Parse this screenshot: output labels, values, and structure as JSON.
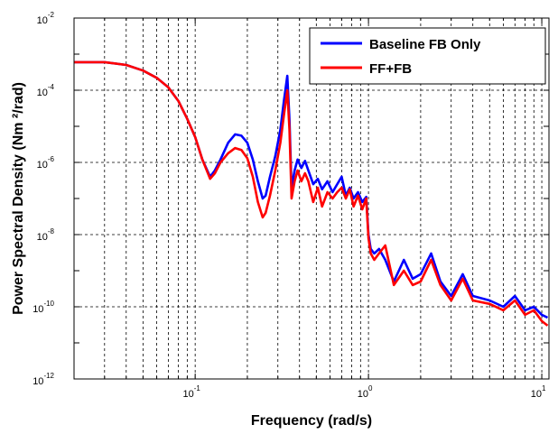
{
  "chart_data": {
    "type": "line",
    "xlabel": "Frequency (rad/s)",
    "ylabel": "Power Spectral Density (Nm ²/rad)",
    "xscale": "log",
    "yscale": "log",
    "xlim": [
      0.02,
      11
    ],
    "ylim": [
      1e-12,
      0.01
    ],
    "grid": true,
    "legend_position": "top-right",
    "x_ticks": [
      {
        "value": 0.1,
        "base": "10",
        "exp": "-1"
      },
      {
        "value": 1,
        "base": "10",
        "exp": "0"
      },
      {
        "value": 10,
        "base": "10",
        "exp": "1"
      }
    ],
    "y_ticks": [
      {
        "value": 1e-12,
        "base": "10",
        "exp": "-12"
      },
      {
        "value": 1e-10,
        "base": "10",
        "exp": "-10"
      },
      {
        "value": 1e-08,
        "base": "10",
        "exp": "-8"
      },
      {
        "value": 1e-06,
        "base": "10",
        "exp": "-6"
      },
      {
        "value": 0.0001,
        "base": "10",
        "exp": "-4"
      },
      {
        "value": 0.01,
        "base": "10",
        "exp": "-2"
      }
    ],
    "series": [
      {
        "name": "Baseline FB Only",
        "color": "#0000ff",
        "x": [
          0.02,
          0.03,
          0.04,
          0.05,
          0.06,
          0.07,
          0.08,
          0.09,
          0.1,
          0.11,
          0.122,
          0.13,
          0.14,
          0.155,
          0.17,
          0.185,
          0.2,
          0.215,
          0.23,
          0.245,
          0.255,
          0.27,
          0.29,
          0.31,
          0.325,
          0.34,
          0.35,
          0.36,
          0.375,
          0.39,
          0.41,
          0.43,
          0.45,
          0.48,
          0.51,
          0.54,
          0.58,
          0.62,
          0.66,
          0.7,
          0.74,
          0.78,
          0.82,
          0.87,
          0.92,
          0.97,
          1.0,
          1.03,
          1.08,
          1.15,
          1.25,
          1.4,
          1.6,
          1.8,
          2.0,
          2.3,
          2.6,
          3.0,
          3.5,
          4.0,
          5.0,
          6.0,
          7.0,
          8.0,
          9.0,
          10.0,
          10.8
        ],
        "y": [
          0.0006,
          0.0006,
          0.0005,
          0.00035,
          0.00022,
          0.00012,
          5e-05,
          1.6e-05,
          5e-06,
          1.2e-06,
          4e-07,
          6e-07,
          1.2e-06,
          3.5e-06,
          6e-06,
          5.5e-06,
          3.5e-06,
          1.2e-06,
          3e-07,
          1e-07,
          1.2e-07,
          4e-07,
          1.5e-06,
          8e-06,
          5e-05,
          0.00025,
          1.5e-05,
          2e-07,
          6e-07,
          1.2e-06,
          7e-07,
          1.1e-06,
          6e-07,
          2.5e-07,
          3.5e-07,
          1.8e-07,
          3e-07,
          1.5e-07,
          2.5e-07,
          4e-07,
          1.2e-07,
          2e-07,
          1e-07,
          1.5e-07,
          8e-08,
          1.1e-07,
          1e-08,
          4e-09,
          3e-09,
          4e-09,
          2e-09,
          5e-10,
          2e-09,
          6e-10,
          8e-10,
          3e-09,
          5e-10,
          2e-10,
          8e-10,
          2e-10,
          1.5e-10,
          1e-10,
          2e-10,
          8e-11,
          1e-10,
          6e-11,
          5e-11
        ]
      },
      {
        "name": "FF+FB",
        "color": "#ff0000",
        "x": [
          0.02,
          0.03,
          0.04,
          0.05,
          0.06,
          0.07,
          0.08,
          0.09,
          0.1,
          0.11,
          0.122,
          0.13,
          0.14,
          0.155,
          0.17,
          0.185,
          0.2,
          0.215,
          0.23,
          0.245,
          0.255,
          0.27,
          0.29,
          0.31,
          0.325,
          0.34,
          0.35,
          0.36,
          0.375,
          0.39,
          0.41,
          0.43,
          0.45,
          0.48,
          0.51,
          0.54,
          0.58,
          0.62,
          0.66,
          0.7,
          0.74,
          0.78,
          0.82,
          0.87,
          0.92,
          0.97,
          1.0,
          1.03,
          1.08,
          1.15,
          1.25,
          1.4,
          1.6,
          1.8,
          2.0,
          2.3,
          2.6,
          3.0,
          3.5,
          4.0,
          5.0,
          6.0,
          7.0,
          8.0,
          9.0,
          10.0,
          10.8
        ],
        "y": [
          0.0006,
          0.0006,
          0.0005,
          0.00035,
          0.00022,
          0.00012,
          5e-05,
          1.6e-05,
          5e-06,
          1.2e-06,
          3.5e-07,
          5e-07,
          1e-06,
          1.8e-06,
          2.5e-06,
          2.2e-06,
          1.3e-06,
          4e-07,
          8e-08,
          3e-08,
          4e-08,
          1.2e-07,
          6e-07,
          3.5e-06,
          2e-05,
          0.0001,
          8e-06,
          1e-07,
          3e-07,
          6e-07,
          3e-07,
          5e-07,
          3e-07,
          8e-08,
          2e-07,
          6e-08,
          1.5e-07,
          1e-07,
          1.5e-07,
          2e-07,
          1e-07,
          1.8e-07,
          6e-08,
          1.2e-07,
          5e-08,
          1e-07,
          8e-09,
          3e-09,
          2e-09,
          3e-09,
          5e-09,
          4e-10,
          1e-09,
          4e-10,
          5e-10,
          2e-09,
          4e-10,
          1.5e-10,
          6e-10,
          1.5e-10,
          1.2e-10,
          8e-11,
          1.5e-10,
          6e-11,
          8e-11,
          4e-11,
          3e-11
        ]
      }
    ]
  }
}
